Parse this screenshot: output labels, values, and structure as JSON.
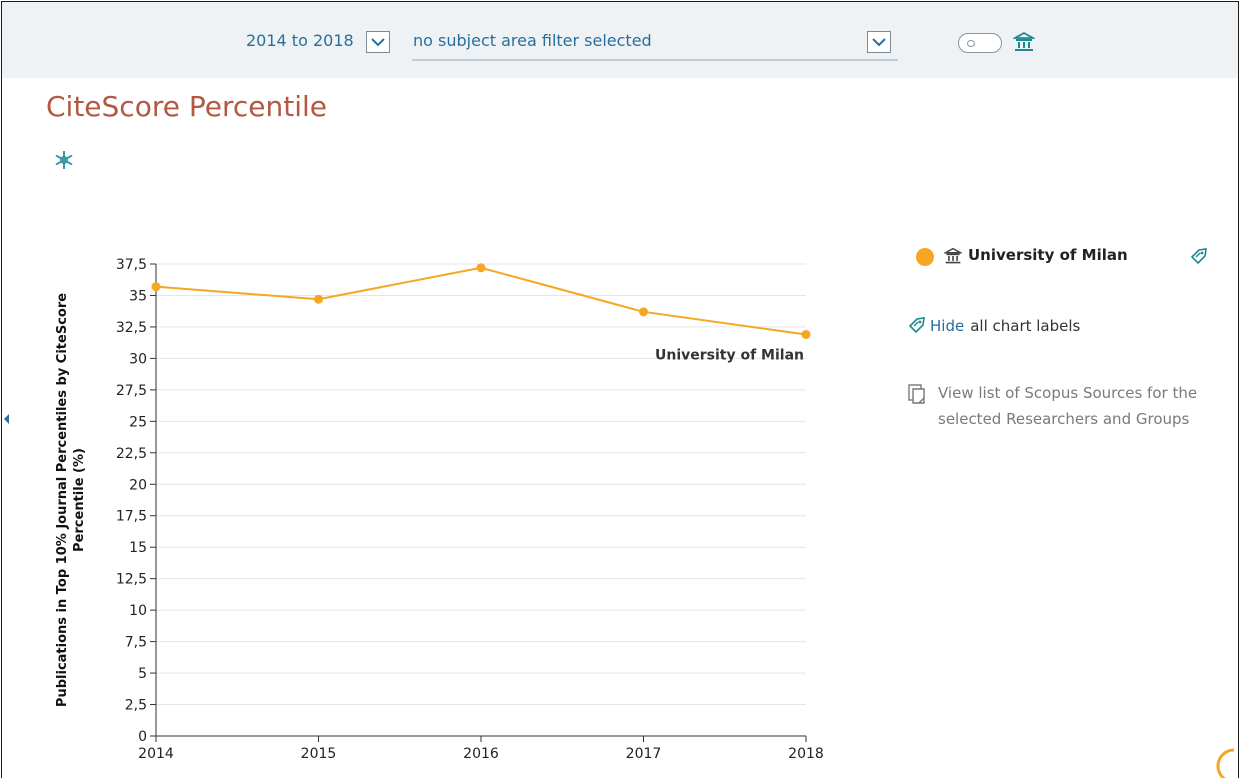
{
  "header": {
    "period_label": "2014 to 2018",
    "subject_filter": "no subject area filter selected",
    "period_dropdown_icon": "chevron-down-icon",
    "subject_dropdown_icon": "chevron-down-icon",
    "toggle_icon": "toggle-switch-icon",
    "institution_icon": "institution-icon"
  },
  "page": {
    "title": "CiteScore Percentile",
    "settings_icon": "snowflake-settings-icon"
  },
  "legend": {
    "series_label": "University of Milan",
    "series_color": "#f6a623",
    "tag_icon": "tag-icon"
  },
  "actions": {
    "hide_link": "Hide",
    "hide_suffix": "all chart labels",
    "sources_text": "View list of Scopus Sources for the selected Researchers and Groups",
    "sources_icon": "document-list-icon"
  },
  "chart_data": {
    "type": "line",
    "x": [
      2014,
      2015,
      2016,
      2017,
      2018
    ],
    "series": [
      {
        "name": "University of Milan",
        "color": "#f6a623",
        "values": [
          35.7,
          34.7,
          37.2,
          33.7,
          31.9
        ]
      }
    ],
    "ylabel": "Publications in Top 10% Journal Percentiles by CiteScore Percentile (%)",
    "ylim": [
      0,
      37.5
    ],
    "yticks": [
      "0",
      "2,5",
      "5",
      "7,5",
      "10",
      "12,5",
      "15",
      "17,5",
      "20",
      "22,5",
      "25",
      "27,5",
      "30",
      "32,5",
      "35",
      "37,5"
    ],
    "xticks": [
      "2014",
      "2015",
      "2016",
      "2017",
      "2018"
    ],
    "data_label": "University of Milan",
    "grid": true
  }
}
